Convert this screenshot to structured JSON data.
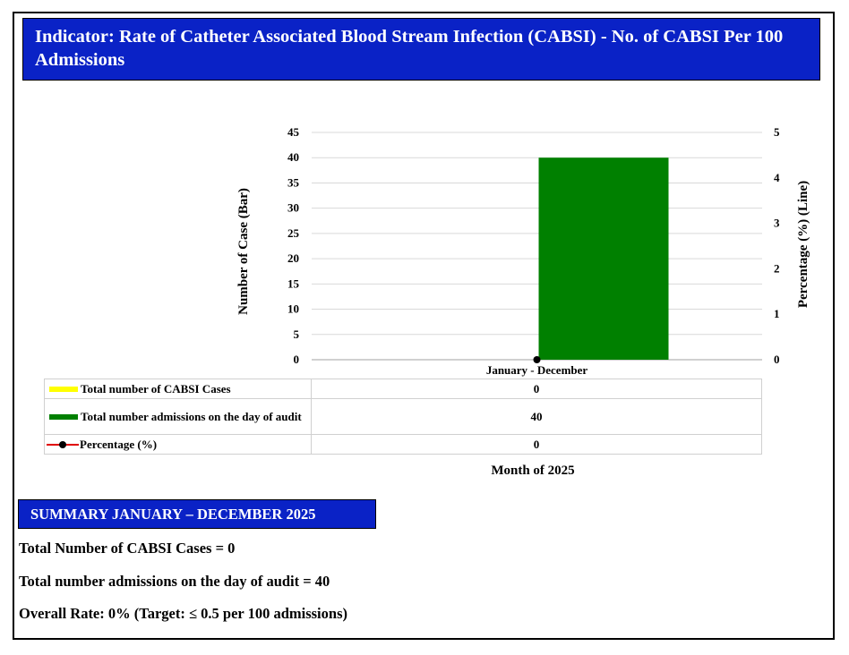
{
  "header": {
    "title": "Indicator: Rate of Catheter Associated Blood Stream Infection (CABSI) - No. of CABSI Per 100 Admissions"
  },
  "chart_data": {
    "type": "bar",
    "categories": [
      "January - December"
    ],
    "series": [
      {
        "name": "Total number of CABSI Cases",
        "kind": "bar",
        "axis": "left",
        "color": "#ffff00",
        "values": [
          0
        ]
      },
      {
        "name": "Total number admissions on the day of audit",
        "kind": "bar",
        "axis": "left",
        "color": "#008000",
        "values": [
          40
        ]
      },
      {
        "name": "Percentage (%)",
        "kind": "line",
        "axis": "right",
        "color": "#ff0000",
        "values": [
          0
        ]
      }
    ],
    "ylabel": "Number of Case (Bar)",
    "y2label": "Percentage (%) (Line)",
    "xlabel": "Month of 2025",
    "ylim": [
      0,
      45
    ],
    "y_ticks": [
      0,
      5,
      10,
      15,
      20,
      25,
      30,
      35,
      40,
      45
    ],
    "y2lim": [
      0,
      5
    ],
    "y2_ticks": [
      0,
      1,
      2,
      3,
      4,
      5
    ],
    "grid": true,
    "legend": "data table below chart"
  },
  "table": {
    "rows": [
      {
        "label": "Total number of CABSI Cases",
        "value": "0"
      },
      {
        "label": "Total number admissions on the day of audit",
        "value": "40"
      },
      {
        "label": "Percentage (%)",
        "value": "0"
      }
    ]
  },
  "summary": {
    "heading": "SUMMARY JANUARY – DECEMBER 2025",
    "line1": "Total Number of CABSI Cases = 0",
    "line2": "Total number admissions on the day of audit = 40",
    "line3": "Overall Rate: 0% (Target: ≤ 0.5 per 100 admissions)"
  },
  "colors": {
    "header_bg": "#0a22c6",
    "cases_bar": "#ffff00",
    "admissions_bar": "#008000",
    "percentage_line": "#ff0000",
    "marker": "#000000"
  }
}
